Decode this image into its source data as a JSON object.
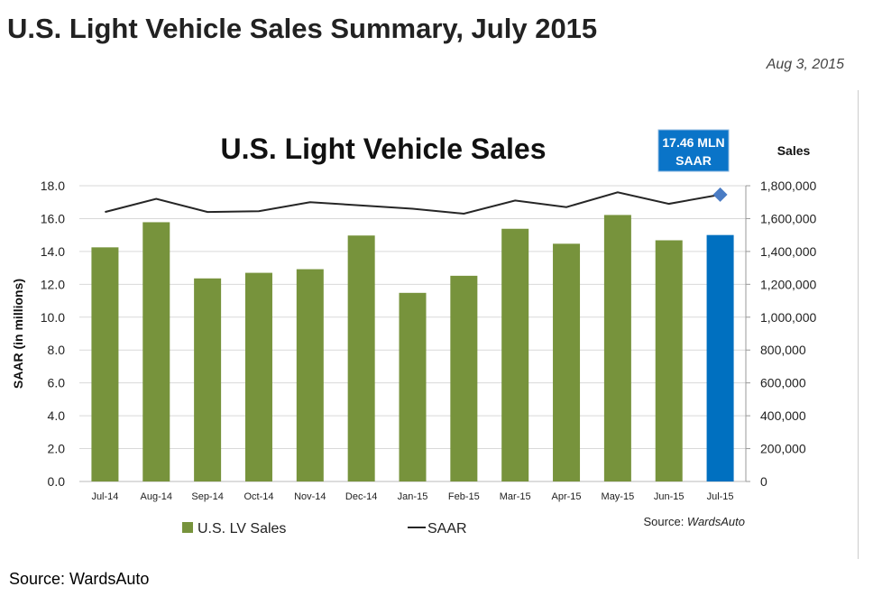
{
  "page": {
    "title": "U.S. Light Vehicle Sales Summary, July 2015",
    "date": "Aug 3, 2015",
    "source": "Source:  WardsAuto"
  },
  "chart_data": {
    "type": "bar",
    "title": "U.S. Light Vehicle Sales",
    "ylabel": "SAAR (in millions)",
    "y2label": "Sales",
    "callout": "17.46 MLN\nSAAR",
    "callout_line1": "17.46 MLN",
    "callout_line2": "SAAR",
    "source_note_prefix": "Source: ",
    "source_note_name": "WardsAuto",
    "categories": [
      "Jul-14",
      "Aug-14",
      "Sep-14",
      "Oct-14",
      "Nov-14",
      "Dec-14",
      "Jan-15",
      "Feb-15",
      "Mar-15",
      "Apr-15",
      "May-15",
      "Jun-15",
      "Jul-15"
    ],
    "ylim": [
      0,
      18
    ],
    "y_ticks": [
      "0.0",
      "2.0",
      "4.0",
      "6.0",
      "8.0",
      "10.0",
      "12.0",
      "14.0",
      "16.0",
      "18.0"
    ],
    "y2lim": [
      0,
      1800000
    ],
    "y2_ticks": [
      "0",
      "200,000",
      "400,000",
      "600,000",
      "800,000",
      "1,000,000",
      "1,200,000",
      "1,400,000",
      "1,600,000",
      "1,800,000"
    ],
    "grid": true,
    "legend_placement": "bottom-left",
    "series": [
      {
        "name": "U.S. LV Sales",
        "type": "bar",
        "axis": "right",
        "color": "#77933c",
        "highlight_color": "#0070c0",
        "values": [
          1425000,
          1578000,
          1236000,
          1270000,
          1292000,
          1497000,
          1148000,
          1252000,
          1538000,
          1447000,
          1622000,
          1468000,
          1500000
        ]
      },
      {
        "name": "SAAR",
        "type": "line",
        "axis": "left",
        "color": "#262626",
        "last_marker_color": "#4a7cc4",
        "values": [
          16.4,
          17.2,
          16.4,
          16.45,
          17.0,
          16.8,
          16.6,
          16.3,
          17.1,
          16.7,
          17.6,
          16.9,
          17.46
        ]
      }
    ]
  }
}
